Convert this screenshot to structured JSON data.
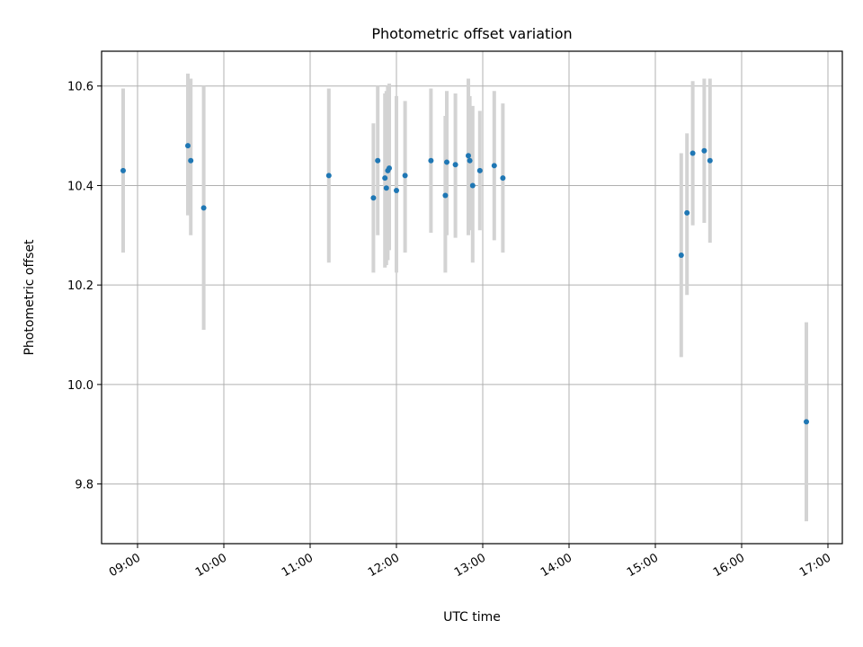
{
  "chart_data": {
    "type": "scatter",
    "title": "Photometric offset variation",
    "xlabel": "UTC time",
    "ylabel": "Photometric offset",
    "x_is_time": true,
    "xlim": [
      "08:35",
      "17:10"
    ],
    "ylim": [
      9.68,
      10.67
    ],
    "xticks": [
      "09:00",
      "10:00",
      "11:00",
      "12:00",
      "13:00",
      "14:00",
      "15:00",
      "16:00",
      "17:00"
    ],
    "yticks": [
      9.8,
      10.0,
      10.2,
      10.4,
      10.6
    ],
    "grid": true,
    "colors": {
      "marker": "#1f77b4",
      "errorbar": "#d3d3d3",
      "grid": "#b0b0b0"
    },
    "points": [
      {
        "x": "08:50",
        "y": 10.43,
        "ylo": 10.265,
        "yhi": 10.595
      },
      {
        "x": "09:35",
        "y": 10.48,
        "ylo": 10.34,
        "yhi": 10.625
      },
      {
        "x": "09:37",
        "y": 10.45,
        "ylo": 10.3,
        "yhi": 10.615
      },
      {
        "x": "09:46",
        "y": 10.355,
        "ylo": 10.11,
        "yhi": 10.6
      },
      {
        "x": "11:13",
        "y": 10.42,
        "ylo": 10.245,
        "yhi": 10.595
      },
      {
        "x": "11:44",
        "y": 10.375,
        "ylo": 10.225,
        "yhi": 10.525
      },
      {
        "x": "11:47",
        "y": 10.45,
        "ylo": 10.3,
        "yhi": 10.6
      },
      {
        "x": "11:52",
        "y": 10.415,
        "ylo": 10.235,
        "yhi": 10.585
      },
      {
        "x": "11:53",
        "y": 10.395,
        "ylo": 10.24,
        "yhi": 10.59
      },
      {
        "x": "11:54",
        "y": 10.43,
        "ylo": 10.25,
        "yhi": 10.6
      },
      {
        "x": "11:55",
        "y": 10.435,
        "ylo": 10.27,
        "yhi": 10.605
      },
      {
        "x": "12:00",
        "y": 10.39,
        "ylo": 10.225,
        "yhi": 10.58
      },
      {
        "x": "12:06",
        "y": 10.42,
        "ylo": 10.265,
        "yhi": 10.57
      },
      {
        "x": "12:24",
        "y": 10.45,
        "ylo": 10.305,
        "yhi": 10.595
      },
      {
        "x": "12:34",
        "y": 10.38,
        "ylo": 10.225,
        "yhi": 10.54
      },
      {
        "x": "12:35",
        "y": 10.447,
        "ylo": 10.3,
        "yhi": 10.59
      },
      {
        "x": "12:41",
        "y": 10.442,
        "ylo": 10.295,
        "yhi": 10.585
      },
      {
        "x": "12:50",
        "y": 10.46,
        "ylo": 10.3,
        "yhi": 10.615
      },
      {
        "x": "12:51",
        "y": 10.45,
        "ylo": 10.31,
        "yhi": 10.58
      },
      {
        "x": "12:53",
        "y": 10.4,
        "ylo": 10.245,
        "yhi": 10.56
      },
      {
        "x": "12:58",
        "y": 10.43,
        "ylo": 10.31,
        "yhi": 10.55
      },
      {
        "x": "13:08",
        "y": 10.44,
        "ylo": 10.29,
        "yhi": 10.59
      },
      {
        "x": "13:14",
        "y": 10.415,
        "ylo": 10.265,
        "yhi": 10.565
      },
      {
        "x": "15:18",
        "y": 10.26,
        "ylo": 10.055,
        "yhi": 10.465
      },
      {
        "x": "15:22",
        "y": 10.345,
        "ylo": 10.18,
        "yhi": 10.505
      },
      {
        "x": "15:26",
        "y": 10.465,
        "ylo": 10.32,
        "yhi": 10.61
      },
      {
        "x": "15:34",
        "y": 10.47,
        "ylo": 10.325,
        "yhi": 10.615
      },
      {
        "x": "15:38",
        "y": 10.45,
        "ylo": 10.285,
        "yhi": 10.615
      },
      {
        "x": "16:45",
        "y": 9.925,
        "ylo": 9.725,
        "yhi": 10.125
      }
    ]
  }
}
